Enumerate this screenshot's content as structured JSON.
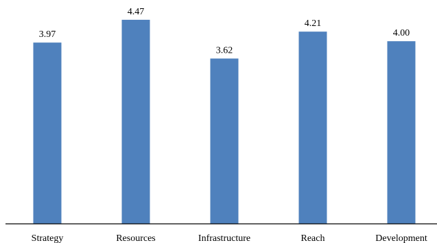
{
  "chart_data": {
    "type": "bar",
    "categories": [
      "Strategy",
      "Resources",
      "Infrastructure",
      "Reach",
      "Development"
    ],
    "values": [
      3.97,
      4.47,
      3.62,
      4.21,
      4.0
    ],
    "value_labels": [
      "3.97",
      "4.47",
      "3.62",
      "4.21",
      "4.00"
    ],
    "title": "",
    "xlabel": "",
    "ylabel": "",
    "ylim": [
      0,
      5
    ],
    "grid": false,
    "legend": "none",
    "bar_color": "#4F81BD"
  }
}
